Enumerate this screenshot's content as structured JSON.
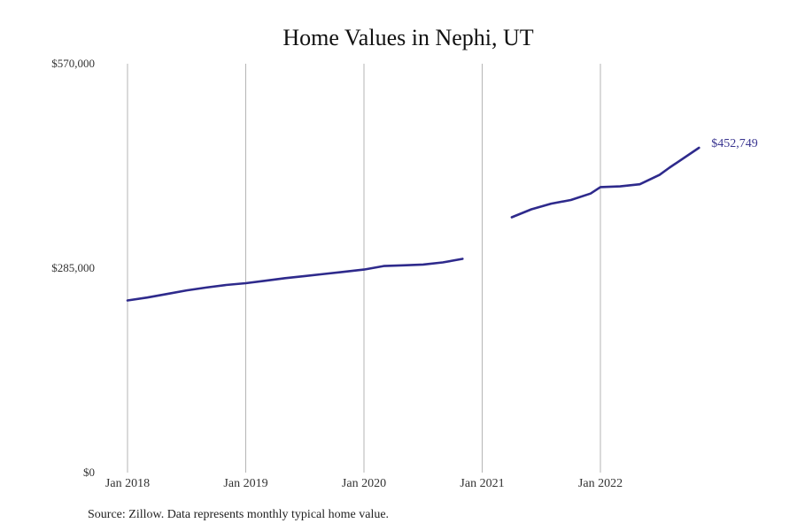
{
  "colors": {
    "line": "#2e2a8c",
    "end_label": "#3a3590"
  },
  "chart_data": {
    "type": "line",
    "title": "Home Values in Nephi, UT",
    "xlabel": "",
    "ylabel": "",
    "ylim": [
      0,
      570000
    ],
    "y_ticks": [
      {
        "value": 0,
        "label": "$0"
      },
      {
        "value": 285000,
        "label": "$285,000"
      },
      {
        "value": 570000,
        "label": "$570,000"
      }
    ],
    "x_ticks": [
      {
        "value": "2018-01",
        "label": "Jan 2018"
      },
      {
        "value": "2019-01",
        "label": "Jan 2019"
      },
      {
        "value": "2020-01",
        "label": "Jan 2020"
      },
      {
        "value": "2021-01",
        "label": "Jan 2021"
      },
      {
        "value": "2022-01",
        "label": "Jan 2022"
      }
    ],
    "grid": "vertical",
    "series": [
      {
        "segments": [
          [
            [
              "2018-01",
              240000
            ],
            [
              "2018-03",
              244000
            ],
            [
              "2018-05",
              249000
            ],
            [
              "2018-07",
              254000
            ],
            [
              "2018-09",
              258000
            ],
            [
              "2018-11",
              261500
            ],
            [
              "2019-01",
              264000
            ],
            [
              "2019-03",
              267500
            ],
            [
              "2019-05",
              271000
            ],
            [
              "2019-07",
              274000
            ],
            [
              "2019-09",
              277000
            ],
            [
              "2019-11",
              280000
            ],
            [
              "2020-01",
              283000
            ],
            [
              "2020-03",
              288000
            ],
            [
              "2020-05",
              289000
            ],
            [
              "2020-07",
              290000
            ],
            [
              "2020-09",
              293000
            ],
            [
              "2020-11",
              298000
            ]
          ],
          [
            [
              "2021-04",
              356000
            ],
            [
              "2021-06",
              367000
            ],
            [
              "2021-08",
              375000
            ],
            [
              "2021-10",
              380000
            ],
            [
              "2021-12",
              389000
            ],
            [
              "2022-01",
              398000
            ],
            [
              "2022-03",
              399000
            ],
            [
              "2022-05",
              402000
            ],
            [
              "2022-07",
              415000
            ],
            [
              "2022-08",
              425000
            ],
            [
              "2022-11",
              452749
            ]
          ]
        ]
      }
    ],
    "end_label": "$452,749",
    "source": "Source: Zillow. Data represents monthly typical home value."
  }
}
